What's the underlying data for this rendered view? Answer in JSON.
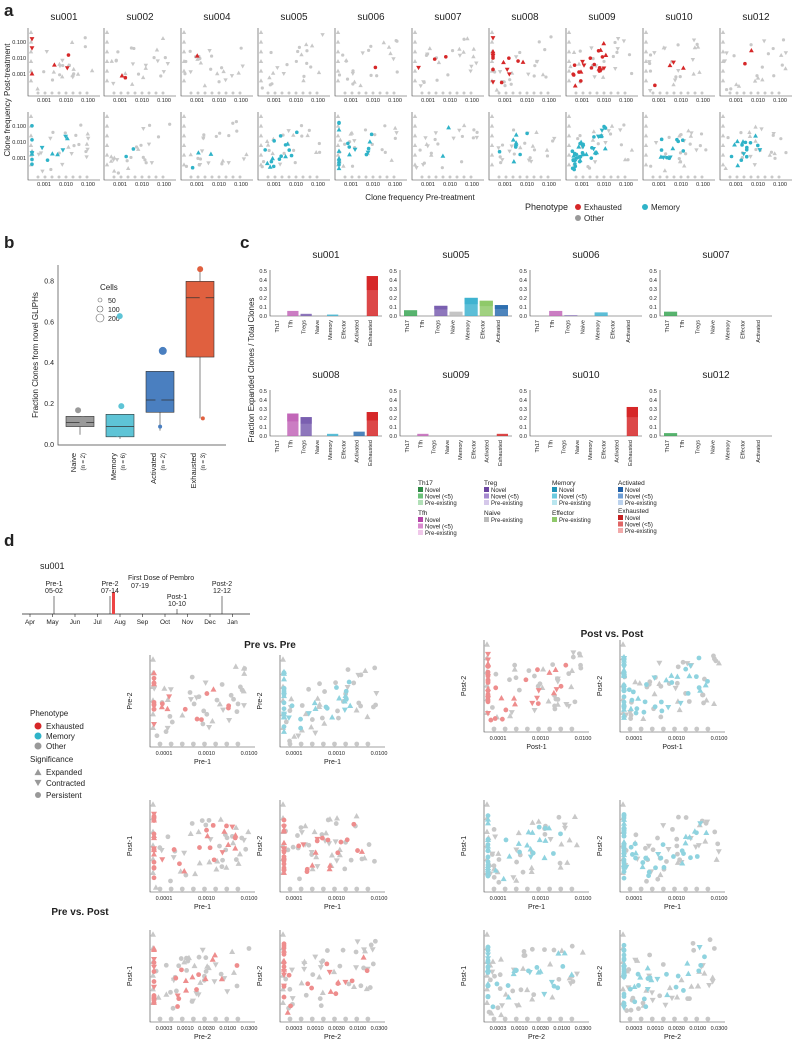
{
  "panel_labels": {
    "a": "a",
    "b": "b",
    "c": "c",
    "d": "d"
  },
  "colors": {
    "exhausted": "#d62728",
    "memory": "#2fb3c8",
    "other": "#c8c8c8",
    "exh_light": "#ee8d8d",
    "mem_light": "#8fd3df"
  },
  "panel_a": {
    "samples": [
      "su001",
      "su002",
      "su004",
      "su005",
      "su006",
      "su007",
      "su008",
      "su009",
      "su010",
      "su012"
    ],
    "ylabel": "Clone frequency Post-treatment",
    "xlabel": "Clone frequency Pre-treatment",
    "ticks": [
      "0.001",
      "0.010",
      "0.100"
    ],
    "legend": {
      "title": "Phenotype",
      "items": [
        "Exhausted",
        "Other",
        "Memory"
      ]
    }
  },
  "panel_b": {
    "ylabel": "Fraction Clones from novel GLIPHs",
    "yticks": [
      "0.0",
      "0.2",
      "0.4",
      "0.6",
      "0.8"
    ],
    "legend_title": "Cells",
    "legend_sizes": [
      "50",
      "100",
      "200"
    ],
    "categories": [
      "Naive",
      "Memory",
      "Activated",
      "Exhausted"
    ],
    "ns": [
      "(n = 2)",
      "(n = 6)",
      "(n = 2)",
      "(n = 3)"
    ]
  },
  "panel_c": {
    "ylabel": "Fraction Expanded Clones / Total Clones",
    "yticks": [
      "0.0",
      "0.1",
      "0.2",
      "0.3",
      "0.4",
      "0.5"
    ],
    "categories": [
      "Th17",
      "Tfh",
      "Tregs",
      "Naive",
      "Memory",
      "Effector",
      "Activated",
      "Exhausted"
    ],
    "samples": [
      "su001",
      "su005",
      "su006",
      "su007",
      "su008",
      "su009",
      "su010",
      "su012"
    ],
    "legend": [
      {
        "title": "Th17",
        "items": [
          "Novel",
          "Novel (<5)",
          "Pre-existing"
        ]
      },
      {
        "title": "Treg",
        "items": [
          "Novel",
          "Novel (<5)",
          "Pre-existing"
        ]
      },
      {
        "title": "Memory",
        "items": [
          "Novel",
          "Novel (<5)",
          "Pre-existing"
        ]
      },
      {
        "title": "Activated",
        "items": [
          "Novel",
          "Novel (<5)",
          "Pre-existing"
        ]
      },
      {
        "title": "Tfh",
        "items": [
          "Novel",
          "Novel (<5)",
          "Pre-existing"
        ]
      },
      {
        "title": "Naive",
        "items": [
          "Pre-existing"
        ]
      },
      {
        "title": "Effector",
        "items": [
          "Pre-existing"
        ]
      },
      {
        "title": "Exhausted",
        "items": [
          "Novel",
          "Novel (<5)",
          "Pre-existing"
        ]
      }
    ]
  },
  "panel_d": {
    "sample": "su001",
    "dose_label": "First Dose of Pembro",
    "dose_date": "07-19",
    "timepoints": [
      {
        "name": "Pre-1",
        "date": "05-02"
      },
      {
        "name": "Pre-2",
        "date": "07-14"
      },
      {
        "name": "Post-1",
        "date": "10-10"
      },
      {
        "name": "Post-2",
        "date": "12-12"
      }
    ],
    "months": [
      "Apr",
      "May",
      "Jun",
      "Jul",
      "Aug",
      "Sep",
      "Oct",
      "Nov",
      "Dec",
      "Jan"
    ],
    "titles": {
      "pre_pre": "Pre vs. Pre",
      "post_post": "Post vs. Post",
      "pre_post": "Pre vs. Post"
    },
    "legend": {
      "phenotype_title": "Phenotype",
      "phenotypes": [
        "Exhausted",
        "Memory",
        "Other"
      ],
      "significance_title": "Significance",
      "significance": [
        "Expanded",
        "Contracted",
        "Persistent"
      ]
    },
    "ticks_pre": [
      "0.0001",
      "0.0010",
      "0.0100"
    ],
    "ticks_pre2": [
      "0.0003",
      "0.0010",
      "0.0030",
      "0.0100",
      "0.0300"
    ],
    "ticks_post": [
      "0.0001",
      "0.0010",
      "0.0100"
    ],
    "axis": {
      "pre1": "Pre-1",
      "pre2": "Pre-2",
      "post1": "Post-1",
      "post2": "Post-2"
    }
  }
}
